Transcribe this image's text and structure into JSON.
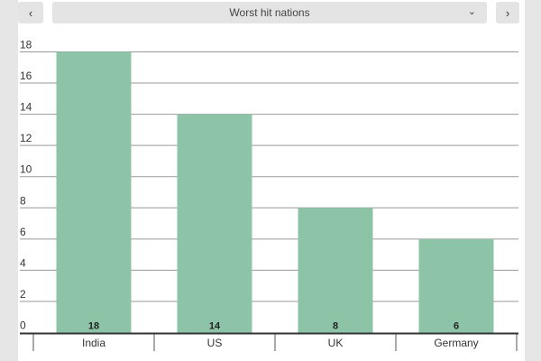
{
  "header": {
    "prev_icon": "chevron-left-icon",
    "next_icon": "chevron-right-icon",
    "dropdown_icon": "chevron-down-icon",
    "selected": "Worst hit nations"
  },
  "colors": {
    "bar": "#8dc4a8",
    "grid": "#9a9a9a",
    "axis": "#333333"
  },
  "chart_data": {
    "type": "bar",
    "title": "",
    "categories": [
      "India",
      "US",
      "UK",
      "Germany"
    ],
    "values": [
      18,
      14,
      8,
      6
    ],
    "data_labels": [
      "18",
      "14",
      "8",
      "6"
    ],
    "ylim": [
      0,
      18
    ],
    "yticks": [
      "0",
      "2",
      "4",
      "6",
      "8",
      "10",
      "12",
      "14",
      "16",
      "18"
    ],
    "grid": true,
    "legend": "none"
  }
}
